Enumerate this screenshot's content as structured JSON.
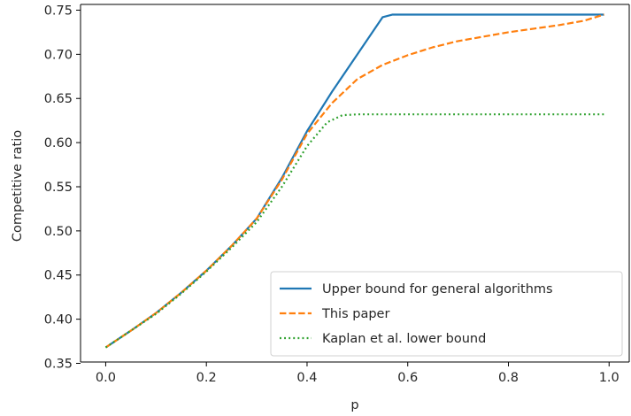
{
  "chart_data": {
    "type": "line",
    "xlabel": "p",
    "ylabel": "Competitive ratio",
    "xlim": [
      -0.05,
      1.04
    ],
    "ylim": [
      0.3515,
      0.7565
    ],
    "xticks": [
      "0.0",
      "0.2",
      "0.4",
      "0.6",
      "0.8",
      "1.0"
    ],
    "yticks": [
      "0.35",
      "0.40",
      "0.45",
      "0.50",
      "0.55",
      "0.60",
      "0.65",
      "0.70",
      "0.75"
    ],
    "grid": false,
    "legend_position": "lower-right",
    "series": [
      {
        "name": "Upper bound for general algorithms",
        "color": "#1f77b4",
        "style": "solid",
        "x": [
          0.0,
          0.05,
          0.1,
          0.15,
          0.2,
          0.25,
          0.3,
          0.35,
          0.4,
          0.45,
          0.5,
          0.55,
          0.57,
          0.6,
          0.7,
          0.8,
          0.9,
          0.99
        ],
        "y": [
          0.368,
          0.387,
          0.407,
          0.43,
          0.455,
          0.483,
          0.514,
          0.56,
          0.613,
          0.658,
          0.7,
          0.742,
          0.745,
          0.745,
          0.745,
          0.745,
          0.745,
          0.745
        ]
      },
      {
        "name": "This paper",
        "color": "#ff7f0e",
        "style": "dashed",
        "x": [
          0.0,
          0.05,
          0.1,
          0.15,
          0.2,
          0.25,
          0.3,
          0.35,
          0.4,
          0.45,
          0.5,
          0.55,
          0.6,
          0.65,
          0.7,
          0.75,
          0.8,
          0.85,
          0.9,
          0.95,
          0.99
        ],
        "y": [
          0.368,
          0.387,
          0.407,
          0.43,
          0.455,
          0.483,
          0.514,
          0.558,
          0.61,
          0.645,
          0.672,
          0.688,
          0.699,
          0.708,
          0.715,
          0.72,
          0.725,
          0.729,
          0.733,
          0.738,
          0.745
        ]
      },
      {
        "name": "Kaplan et al. lower bound",
        "color": "#2ca02c",
        "style": "dotted",
        "x": [
          0.0,
          0.05,
          0.1,
          0.15,
          0.2,
          0.25,
          0.3,
          0.35,
          0.4,
          0.44,
          0.47,
          0.5,
          0.6,
          0.7,
          0.8,
          0.9,
          0.99
        ],
        "y": [
          0.368,
          0.387,
          0.406,
          0.429,
          0.454,
          0.481,
          0.51,
          0.55,
          0.596,
          0.623,
          0.631,
          0.632,
          0.632,
          0.632,
          0.632,
          0.632,
          0.632
        ]
      }
    ]
  }
}
